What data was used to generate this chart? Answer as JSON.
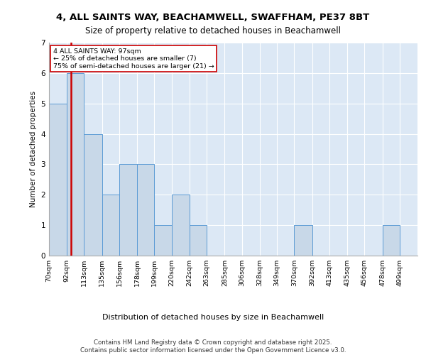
{
  "title1": "4, ALL SAINTS WAY, BEACHAMWELL, SWAFFHAM, PE37 8BT",
  "title2": "Size of property relative to detached houses in Beachamwell",
  "xlabel": "Distribution of detached houses by size in Beachamwell",
  "ylabel": "Number of detached properties",
  "footer": "Contains HM Land Registry data © Crown copyright and database right 2025.\nContains public sector information licensed under the Open Government Licence v3.0.",
  "bin_labels": [
    "70sqm",
    "92sqm",
    "113sqm",
    "135sqm",
    "156sqm",
    "178sqm",
    "199sqm",
    "220sqm",
    "242sqm",
    "263sqm",
    "285sqm",
    "306sqm",
    "328sqm",
    "349sqm",
    "370sqm",
    "392sqm",
    "413sqm",
    "435sqm",
    "456sqm",
    "478sqm",
    "499sqm"
  ],
  "bin_edges": [
    70,
    92,
    113,
    135,
    156,
    178,
    199,
    220,
    242,
    263,
    285,
    306,
    328,
    349,
    370,
    392,
    413,
    435,
    456,
    478,
    499,
    521
  ],
  "counts": [
    5,
    6,
    4,
    2,
    3,
    3,
    1,
    2,
    1,
    0,
    0,
    0,
    0,
    0,
    1,
    0,
    0,
    0,
    0,
    1,
    0
  ],
  "bar_color": "#c8d8e8",
  "bar_edge_color": "#5b9bd5",
  "property_size": 97,
  "property_line_color": "#cc0000",
  "annotation_text": "4 ALL SAINTS WAY: 97sqm\n← 25% of detached houses are smaller (7)\n75% of semi-detached houses are larger (21) →",
  "annotation_box_color": "#ffffff",
  "annotation_border_color": "#cc0000",
  "ylim": [
    0,
    7
  ],
  "background_color": "#ffffff",
  "grid_color": "#ffffff"
}
